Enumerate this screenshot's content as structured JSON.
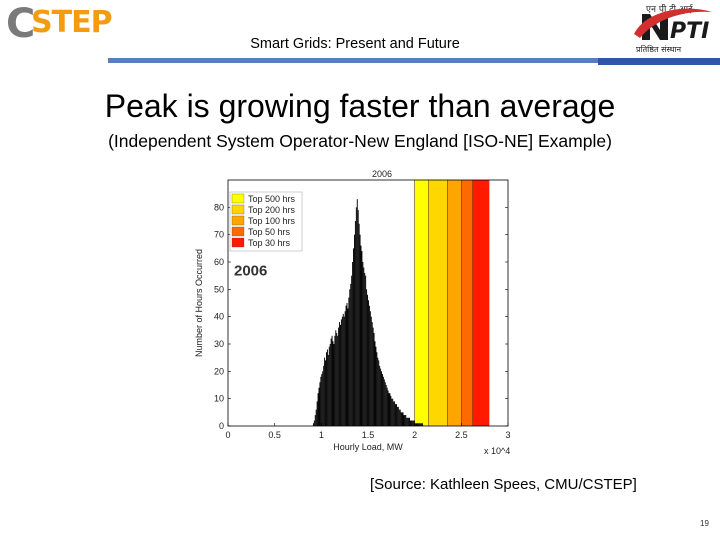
{
  "header": {
    "left_logo_letter": "C",
    "left_logo_rest": "STEP",
    "title": "Smart Grids: Present and Future",
    "right_logo_hindi": "एन पी टी आई",
    "right_logo_tagline": "प्रतिष्ठित संस्थान"
  },
  "slide": {
    "title": "Peak is growing faster than average",
    "subtitle": "(Independent System Operator-New England [ISO-NE] Example)",
    "source": "[Source: Kathleen Spees, CMU/CSTEP]",
    "page_number": "19"
  },
  "colors": {
    "header_band": "#5a7dbd",
    "header_band_dark": "#2c57a7",
    "top500": "#ffff00",
    "top200": "#ffd700",
    "top100": "#ffa500",
    "top50": "#ff6a00",
    "top30": "#ff1a00",
    "bars": "#000000"
  },
  "chart_data": {
    "type": "bar",
    "title": "2006",
    "year_label": "2006",
    "xlabel": "Hourly Load, MW",
    "ylabel": "Number of Hours Occurred",
    "x_multiplier_label": "x 10^4",
    "xlim": [
      0,
      3
    ],
    "ylim": [
      0,
      90
    ],
    "xticks": [
      "0",
      "0.5",
      "1",
      "1.5",
      "2",
      "2.5",
      "3"
    ],
    "yticks": [
      "0",
      "10",
      "20",
      "30",
      "40",
      "50",
      "60",
      "70",
      "80"
    ],
    "legend": [
      "Top 500 hrs",
      "Top 200 hrs",
      "Top 100 hrs",
      "Top 50 hrs",
      "Top 30 hrs"
    ],
    "bands": [
      {
        "name": "Top 500 hrs",
        "from": 2.0,
        "to": 2.15
      },
      {
        "name": "Top 200 hrs",
        "from": 2.15,
        "to": 2.35
      },
      {
        "name": "Top 100 hrs",
        "from": 2.35,
        "to": 2.5
      },
      {
        "name": "Top 50 hrs",
        "from": 2.5,
        "to": 2.62
      },
      {
        "name": "Top 30 hrs",
        "from": 2.62,
        "to": 2.8
      }
    ],
    "bin_start": 0.9,
    "bin_width": 0.01,
    "values": [
      0,
      1,
      2,
      4,
      6,
      9,
      12,
      14,
      16,
      18,
      19,
      20,
      22,
      25,
      24,
      27,
      28,
      26,
      29,
      30,
      32,
      33,
      31,
      30,
      33,
      35,
      34,
      33,
      36,
      38,
      37,
      39,
      40,
      41,
      40,
      42,
      44,
      45,
      43,
      47,
      50,
      52,
      55,
      60,
      65,
      70,
      75,
      80,
      83,
      79,
      74,
      70,
      66,
      64,
      60,
      58,
      56,
      55,
      50,
      48,
      46,
      44,
      42,
      40,
      38,
      36,
      34,
      31,
      29,
      27,
      25,
      24,
      22,
      21,
      20,
      19,
      18,
      17,
      16,
      15,
      14,
      13,
      12,
      12,
      11,
      10,
      10,
      9,
      9,
      8,
      8,
      7,
      7,
      6,
      6,
      5,
      5,
      5,
      4,
      4,
      4,
      3,
      3,
      3,
      3,
      2,
      2,
      2,
      2,
      2,
      1,
      1,
      1,
      1,
      1,
      1,
      1,
      1,
      1,
      0,
      0,
      0,
      0,
      0,
      0,
      0,
      0,
      0,
      0,
      0,
      0,
      0,
      0,
      0,
      0,
      0,
      0,
      0,
      0,
      0,
      0,
      0,
      0,
      0,
      0,
      0,
      0,
      0,
      0,
      0,
      0,
      0,
      0,
      0,
      0,
      0,
      0,
      0,
      0,
      0,
      0,
      0,
      0,
      0
    ]
  }
}
